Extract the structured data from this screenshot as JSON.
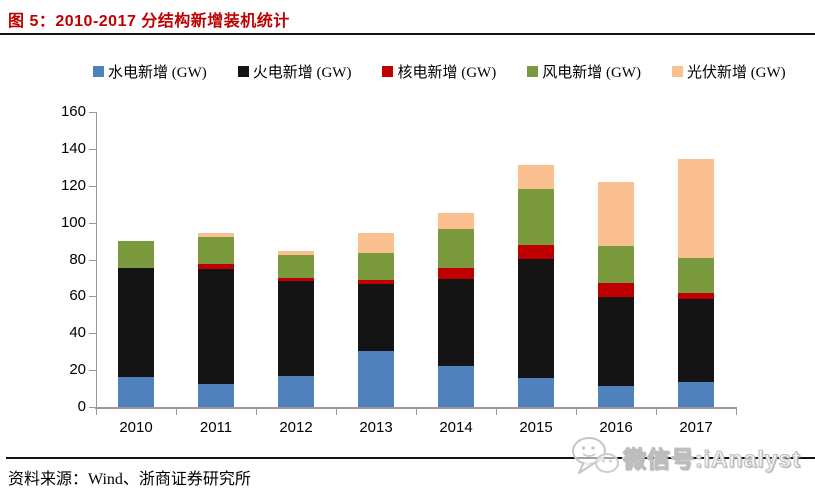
{
  "header": {
    "title": "图 5：2010-2017 分结构新增装机统计"
  },
  "footer": {
    "source": "资料来源：Wind、浙商证券研究所"
  },
  "watermark": {
    "text": "微信号:iAnalyst",
    "icon": "wechat-icon"
  },
  "colors": {
    "title_red": "#C00000",
    "axis_gray": "#999999",
    "hydro_blue": "#4F81BD",
    "thermal_black": "#141414",
    "nuclear_red": "#C00000",
    "wind_green": "#7A9A3D",
    "solar_tan": "#FAC090"
  },
  "chart_data": {
    "type": "bar",
    "stacked": true,
    "title": "2010-2017 分结构新增装机统计",
    "categories": [
      "2010",
      "2011",
      "2012",
      "2013",
      "2014",
      "2015",
      "2016",
      "2017"
    ],
    "series": [
      {
        "name": "水电新增 (GW)",
        "key": "hydro",
        "color": "#4F81BD",
        "values": [
          16.5,
          12.7,
          16.7,
          30.5,
          22.0,
          16.0,
          11.4,
          13.3
        ]
      },
      {
        "name": "火电新增 (GW)",
        "key": "thermal",
        "color": "#141414",
        "values": [
          59.0,
          62.0,
          51.4,
          36.0,
          47.6,
          64.5,
          48.5,
          45.4
        ]
      },
      {
        "name": "核电新增 (GW)",
        "key": "nuclear",
        "color": "#C00000",
        "values": [
          0.0,
          2.6,
          1.9,
          2.5,
          5.9,
          7.6,
          7.3,
          2.9
        ]
      },
      {
        "name": "风电新增 (GW)",
        "key": "wind",
        "color": "#7A9A3D",
        "values": [
          14.5,
          14.7,
          12.6,
          14.6,
          21.3,
          30.1,
          20.0,
          19.2
        ]
      },
      {
        "name": "光伏新增 (GW)",
        "key": "solar",
        "color": "#FAC090",
        "values": [
          0.0,
          2.5,
          1.8,
          10.9,
          8.5,
          12.8,
          35.0,
          53.6
        ]
      }
    ],
    "totals": [
      90.0,
      94.5,
      84.4,
      94.5,
      105.3,
      131.0,
      122.2,
      134.4
    ],
    "ylim": [
      0,
      160
    ],
    "yticks": [
      0,
      20,
      40,
      60,
      80,
      100,
      120,
      140,
      160
    ],
    "grid": false,
    "legend_position": "top"
  }
}
